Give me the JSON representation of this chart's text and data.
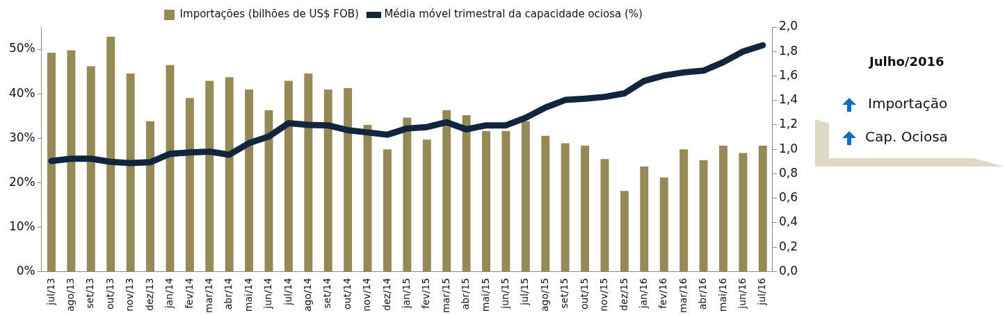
{
  "chart_data": {
    "type": "bar",
    "categories": [
      "jul/13",
      "ago/13",
      "set/13",
      "out/13",
      "nov/13",
      "dez/13",
      "jan/14",
      "fev/14",
      "mar/14",
      "abr/14",
      "mai/14",
      "jun/14",
      "jul/14",
      "ago/14",
      "set/14",
      "out/14",
      "nov/14",
      "dez/14",
      "jan/15",
      "fev/15",
      "mar/15",
      "abr/15",
      "mai/15",
      "jun/15",
      "jul/15",
      "ago/15",
      "set/15",
      "out/15",
      "nov/15",
      "dez/15",
      "jan/16",
      "fev/16",
      "mar/16",
      "abr/16",
      "mai/16",
      "jun/16",
      "jul/16"
    ],
    "series": [
      {
        "name": "Importações (bilhões de US$ FOB)",
        "axis": "y2",
        "color": "#958a55",
        "values": [
          1.79,
          1.81,
          1.68,
          1.92,
          1.62,
          1.23,
          1.69,
          1.42,
          1.56,
          1.59,
          1.49,
          1.32,
          1.56,
          1.62,
          1.49,
          1.5,
          1.2,
          1.0,
          1.26,
          1.08,
          1.32,
          1.28,
          1.15,
          1.15,
          1.23,
          1.11,
          1.05,
          1.03,
          0.92,
          0.66,
          0.86,
          0.77,
          1.0,
          0.91,
          1.03,
          0.97,
          1.03
        ]
      },
      {
        "name": "Média móvel trimestral da capacidade ociosa (%)",
        "type": "line",
        "color": "#12253f",
        "values": [
          24.9,
          25.4,
          25.4,
          24.7,
          24.4,
          24.6,
          26.5,
          26.8,
          27.0,
          26.3,
          28.9,
          30.4,
          33.4,
          33.0,
          32.9,
          31.8,
          31.3,
          30.8,
          32.2,
          32.5,
          33.6,
          32.0,
          32.9,
          32.9,
          34.6,
          36.9,
          38.6,
          38.9,
          39.3,
          40.1,
          42.9,
          44.1,
          44.8,
          45.2,
          47.1,
          49.5,
          50.9
        ]
      }
    ],
    "ylim": [
      0,
      55
    ],
    "yticks": [
      {
        "value": 0,
        "label": "0%"
      },
      {
        "value": 10,
        "label": "10%"
      },
      {
        "value": 20,
        "label": "20%"
      },
      {
        "value": 30,
        "label": "30%"
      },
      {
        "value": 40,
        "label": "40%"
      },
      {
        "value": 50,
        "label": "50%"
      }
    ],
    "y2lim": [
      0,
      2
    ],
    "y2ticks": [
      {
        "value": 0,
        "label": "0,0"
      },
      {
        "value": 0.2,
        "label": "0,2"
      },
      {
        "value": 0.4,
        "label": "0,4"
      },
      {
        "value": 0.6,
        "label": "0,6"
      },
      {
        "value": 0.8,
        "label": "0,8"
      },
      {
        "value": 1.0,
        "label": "1,0"
      },
      {
        "value": 1.2,
        "label": "1,2"
      },
      {
        "value": 1.4,
        "label": "1,4"
      },
      {
        "value": 1.6,
        "label": "1,6"
      },
      {
        "value": 1.8,
        "label": "1,8"
      },
      {
        "value": 2.0,
        "label": "2,0"
      }
    ],
    "annotations": [
      "Julho/2016",
      "Importação",
      "Cap. Ociosa"
    ],
    "legend": "top",
    "grid": false,
    "marker": "none",
    "line_style": "solid"
  }
}
